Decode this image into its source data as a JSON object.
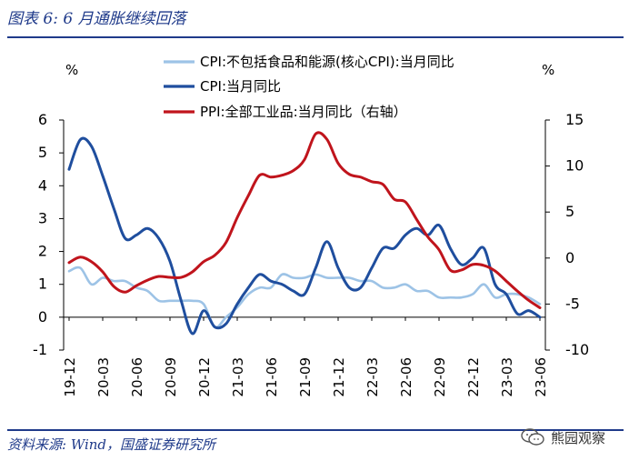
{
  "figure": {
    "title": "图表 6:  6 月通胀继续回落",
    "source": "资料来源:  Wind，国盛证券研究所",
    "watermark": "熊园观察",
    "brand_color": "#1f3a8a"
  },
  "chart_data": {
    "type": "line",
    "left_unit": "%",
    "right_unit": "%",
    "ylim_left": [
      -1,
      6
    ],
    "ylim_right": [
      -10,
      15
    ],
    "yticks_left": [
      "-1",
      "0",
      "1",
      "2",
      "3",
      "4",
      "5",
      "6"
    ],
    "yticks_right": [
      "-10",
      "-5",
      "0",
      "5",
      "10",
      "15"
    ],
    "x_tick_labels": [
      "19-12",
      "20-03",
      "20-06",
      "20-09",
      "20-12",
      "21-03",
      "21-06",
      "21-09",
      "21-12",
      "22-03",
      "22-06",
      "22-09",
      "22-12",
      "23-03",
      "23-06"
    ],
    "x": [
      "19-12",
      "20-01",
      "20-02",
      "20-03",
      "20-04",
      "20-05",
      "20-06",
      "20-07",
      "20-08",
      "20-09",
      "20-10",
      "20-11",
      "20-12",
      "21-01",
      "21-02",
      "21-03",
      "21-04",
      "21-05",
      "21-06",
      "21-07",
      "21-08",
      "21-09",
      "21-10",
      "21-11",
      "21-12",
      "22-01",
      "22-02",
      "22-03",
      "22-04",
      "22-05",
      "22-06",
      "22-07",
      "22-08",
      "22-09",
      "22-10",
      "22-11",
      "22-12",
      "23-01",
      "23-02",
      "23-03",
      "23-04",
      "23-05",
      "23-06"
    ],
    "legend_position": "top",
    "series": [
      {
        "name": "CPI:不包括食品和能源(核心CPI):当月同比",
        "axis": "left",
        "color": "#9dc3e6",
        "values": [
          1.4,
          1.5,
          1.0,
          1.2,
          1.1,
          1.1,
          0.9,
          0.8,
          0.5,
          0.5,
          0.5,
          0.5,
          0.4,
          -0.3,
          0.0,
          0.3,
          0.7,
          0.9,
          0.9,
          1.3,
          1.2,
          1.2,
          1.3,
          1.2,
          1.2,
          1.2,
          1.1,
          1.1,
          0.9,
          0.9,
          1.0,
          0.8,
          0.8,
          0.6,
          0.6,
          0.6,
          0.7,
          1.0,
          0.6,
          0.7,
          0.7,
          0.6,
          0.4
        ]
      },
      {
        "name": "CPI:当月同比",
        "axis": "left",
        "color": "#1f4e9e",
        "values": [
          4.5,
          5.4,
          5.2,
          4.3,
          3.3,
          2.4,
          2.5,
          2.7,
          2.4,
          1.7,
          0.5,
          -0.5,
          0.2,
          -0.3,
          -0.2,
          0.4,
          0.9,
          1.3,
          1.1,
          1.0,
          0.8,
          0.7,
          1.5,
          2.3,
          1.5,
          0.9,
          0.9,
          1.5,
          2.1,
          2.1,
          2.5,
          2.7,
          2.5,
          2.8,
          2.1,
          1.6,
          1.8,
          2.1,
          1.0,
          0.7,
          0.1,
          0.2,
          0.0
        ]
      },
      {
        "name": "PPI:全部工业品:当月同比（右轴）",
        "axis": "right",
        "color": "#c0141c",
        "values": [
          -0.5,
          0.1,
          -0.4,
          -1.5,
          -3.1,
          -3.7,
          -3.0,
          -2.4,
          -2.0,
          -2.1,
          -2.1,
          -1.5,
          -0.4,
          0.3,
          1.7,
          4.4,
          6.8,
          9.0,
          8.8,
          9.0,
          9.5,
          10.7,
          13.5,
          12.9,
          10.3,
          9.1,
          8.8,
          8.3,
          8.0,
          6.4,
          6.1,
          4.2,
          2.3,
          0.9,
          -1.3,
          -1.3,
          -0.7,
          -0.8,
          -1.4,
          -2.5,
          -3.6,
          -4.6,
          -5.4
        ]
      }
    ]
  }
}
